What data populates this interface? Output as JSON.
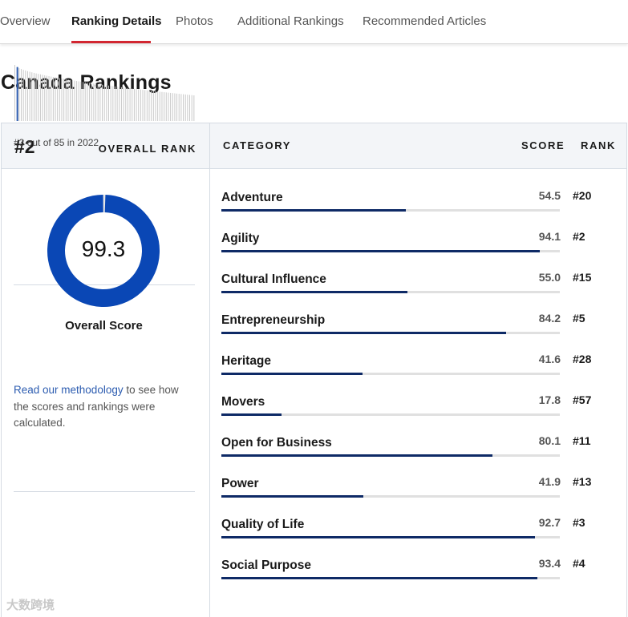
{
  "tabs": [
    {
      "label": "Overview",
      "active": false
    },
    {
      "label": "Ranking Details",
      "active": true
    },
    {
      "label": "Photos",
      "active": false
    },
    {
      "label": "Additional Rankings",
      "active": false
    },
    {
      "label": "Recommended Articles",
      "active": false
    }
  ],
  "page_title": "Canada Rankings",
  "overall": {
    "rank": "#2",
    "rank_label": "OVERALL RANK",
    "history_caption": "#3 out of 85 in 2022",
    "history_highlight_index": 1,
    "score": "99.3",
    "score_fraction": 0.993,
    "score_label": "Overall Score"
  },
  "methodology": {
    "link_text": "Read our methodology",
    "rest_text": " to see how the scores and rankings were calculated."
  },
  "table": {
    "col_category": "CATEGORY",
    "col_score": "SCORE",
    "col_rank": "RANK",
    "rows": [
      {
        "name": "Adventure",
        "score": "54.5",
        "rank": "#20",
        "fraction": 0.545
      },
      {
        "name": "Agility",
        "score": "94.1",
        "rank": "#2",
        "fraction": 0.941
      },
      {
        "name": "Cultural Influence",
        "score": "55.0",
        "rank": "#15",
        "fraction": 0.55
      },
      {
        "name": "Entrepreneurship",
        "score": "84.2",
        "rank": "#5",
        "fraction": 0.842
      },
      {
        "name": "Heritage",
        "score": "41.6",
        "rank": "#28",
        "fraction": 0.416
      },
      {
        "name": "Movers",
        "score": "17.8",
        "rank": "#57",
        "fraction": 0.178
      },
      {
        "name": "Open for Business",
        "score": "80.1",
        "rank": "#11",
        "fraction": 0.801
      },
      {
        "name": "Power",
        "score": "41.9",
        "rank": "#13",
        "fraction": 0.419
      },
      {
        "name": "Quality of Life",
        "score": "92.7",
        "rank": "#3",
        "fraction": 0.927
      },
      {
        "name": "Social Purpose",
        "score": "93.4",
        "rank": "#4",
        "fraction": 0.934
      }
    ]
  },
  "colors": {
    "accent_red": "#d22630",
    "bar_navy": "#0e2a66",
    "donut_blue": "#0a47b5",
    "history_highlight": "#2c5cb0",
    "history_bar": "#c9c9c9"
  },
  "watermark": "大数跨境"
}
